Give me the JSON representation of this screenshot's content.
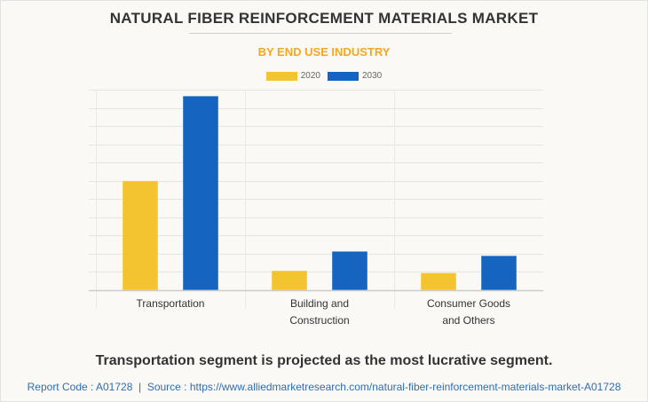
{
  "title": "NATURAL FIBER REINFORCEMENT MATERIALS MARKET",
  "subtitle": "BY END USE INDUSTRY",
  "caption": "Transportation segment is projected as the most lucrative segment.",
  "source_line": "Report Code : A01728  |  Source : https://www.alliedmarketresearch.com/natural-fiber-reinforcement-materials-market-A01728",
  "colors": {
    "series_2020": "#f4c430",
    "series_2030": "#1565c0",
    "title": "#333333",
    "subtitle": "#f5a623",
    "source": "#2e6db4"
  },
  "chart_data": {
    "type": "bar",
    "title": "NATURAL FIBER REINFORCEMENT MATERIALS MARKET",
    "subtitle": "BY END USE INDUSTRY",
    "xlabel": "",
    "ylabel": "",
    "categories": [
      [
        "Transportation"
      ],
      [
        "Building and",
        "Construction"
      ],
      [
        "Consumer Goods",
        "and Others"
      ]
    ],
    "series": [
      {
        "name": "2020",
        "color": "#f4c430",
        "values": [
          6.0,
          1.07,
          0.95
        ]
      },
      {
        "name": "2030",
        "color": "#1565c0",
        "values": [
          10.65,
          2.13,
          1.89
        ]
      }
    ],
    "ylim": [
      0,
      11
    ],
    "y_gridlines": 11,
    "y_tick_labels_shown": false,
    "grid": true,
    "legend": "top-center"
  }
}
